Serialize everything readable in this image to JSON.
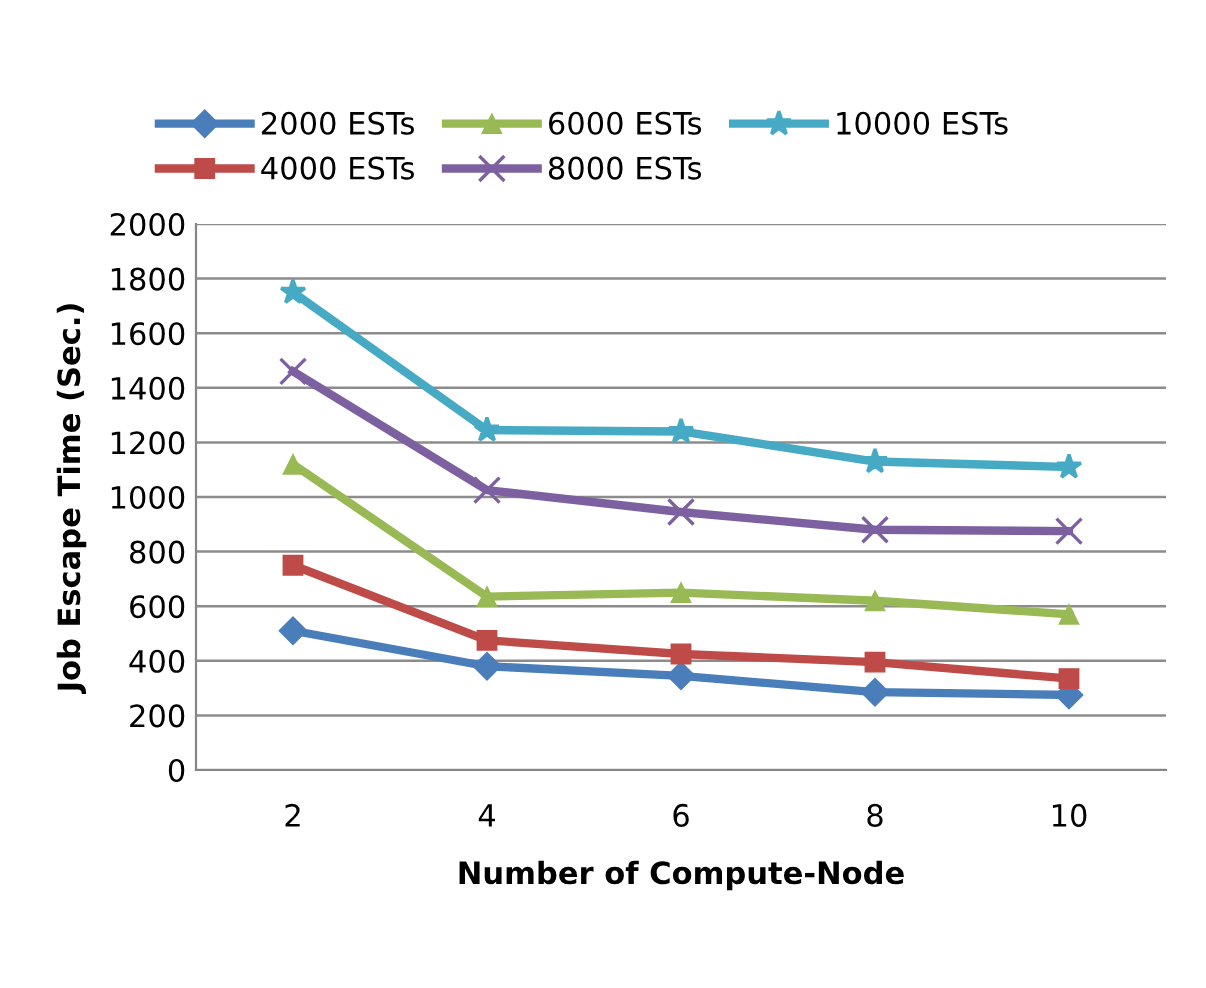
{
  "chart_data": {
    "type": "line",
    "xlabel": "Number of Compute-Node",
    "ylabel": "Job Escape Time (Sec.)",
    "categories": [
      "2",
      "4",
      "6",
      "8",
      "10"
    ],
    "series": [
      {
        "name": "2000 ESTs",
        "color": "#4a7ebb",
        "marker": "diamond",
        "values": [
          510,
          380,
          345,
          285,
          275
        ]
      },
      {
        "name": "4000 ESTs",
        "color": "#be4b48",
        "marker": "square",
        "values": [
          750,
          475,
          425,
          395,
          335
        ]
      },
      {
        "name": "6000 ESTs",
        "color": "#98b954",
        "marker": "triangle",
        "values": [
          1120,
          635,
          650,
          620,
          570
        ]
      },
      {
        "name": "8000 ESTs",
        "color": "#7d60a0",
        "marker": "cross",
        "values": [
          1460,
          1025,
          945,
          880,
          875
        ]
      },
      {
        "name": "10000 ESTs",
        "color": "#46aac5",
        "marker": "star",
        "values": [
          1750,
          1245,
          1240,
          1130,
          1110
        ]
      }
    ],
    "ylim": [
      0,
      2000
    ],
    "yticks": [
      0,
      200,
      400,
      600,
      800,
      1000,
      1200,
      1400,
      1600,
      1800,
      2000
    ],
    "grid": "y",
    "legend": "top",
    "line_style": "solid"
  }
}
